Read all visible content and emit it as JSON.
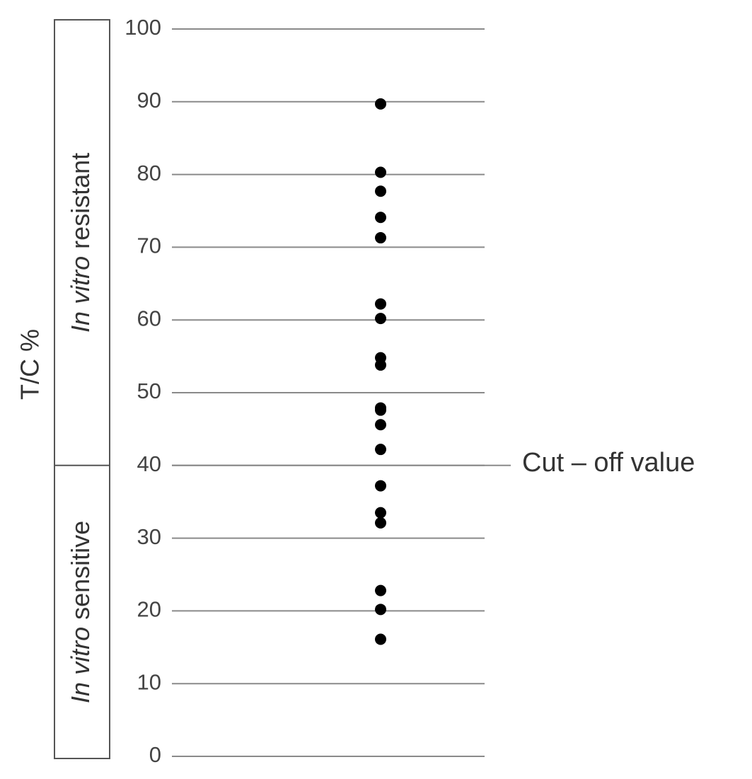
{
  "chart_data": {
    "type": "strip",
    "y_label": "T/C %",
    "values": [
      89.7,
      80.3,
      77.7,
      74.1,
      71.3,
      62.2,
      60.2,
      54.8,
      53.8,
      47.9,
      47.6,
      45.6,
      42.2,
      37.2,
      33.5,
      32.1,
      22.8,
      20.2,
      16.1
    ],
    "color": "#000000",
    "ylim": [
      0,
      100
    ],
    "yticks": [
      0,
      10,
      20,
      30,
      40,
      50,
      60,
      70,
      80,
      90,
      100
    ],
    "grid": true,
    "cutoff": {
      "value": 40,
      "label": "Cut – off value"
    },
    "regions": [
      {
        "italic": "In vitro",
        "text": "resistant"
      },
      {
        "italic": "In vitro",
        "text": "sensitive"
      }
    ]
  }
}
